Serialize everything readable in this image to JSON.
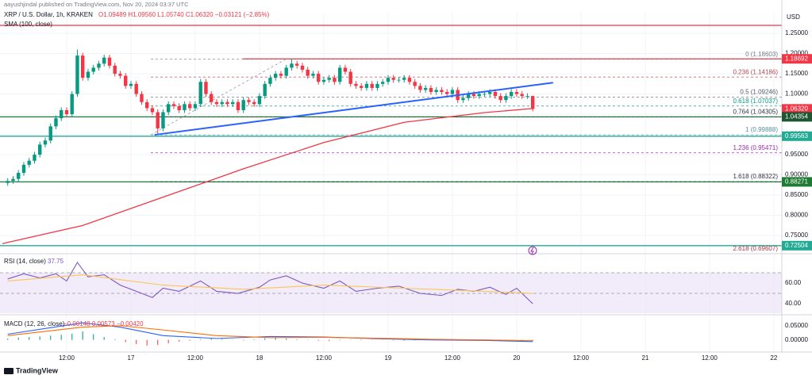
{
  "header": {
    "publisher": "aayushjindal published on TradingView.com, Nov 20, 2024 03:37 UTC",
    "symbol": "XRP / U.S. Dollar, 1h, KRAKEN",
    "ohlc": "O1.09489 H1.09560 L1.05740 C1.06320 −0.03121 (−2.85%)",
    "currency": "USD"
  },
  "footer": {
    "brand": "TradingView"
  },
  "chart_data": [
    {
      "type": "candlestick",
      "indicator": "SMA (100, close)",
      "up_color": "#089981",
      "down_color": "#f23645",
      "grid": true,
      "x": [
        1,
        2,
        3,
        4,
        5,
        6,
        7,
        8,
        9,
        10,
        11,
        12,
        13,
        14,
        15,
        16,
        17,
        18,
        19,
        20,
        21,
        22,
        23,
        24,
        25,
        26,
        27,
        28,
        29,
        30,
        31,
        32,
        33,
        34,
        35,
        36,
        37,
        38,
        39,
        40,
        41,
        42,
        43,
        44,
        45,
        46,
        47,
        48,
        49,
        50,
        51,
        52,
        53,
        54,
        55,
        56,
        57,
        58,
        59,
        60,
        61,
        62,
        63,
        64,
        65,
        66,
        67,
        68,
        69,
        70,
        71,
        72,
        73,
        74,
        75,
        76,
        77,
        78,
        79,
        80,
        81,
        82,
        83,
        84,
        85,
        86,
        87,
        88,
        89,
        90,
        91,
        92,
        93,
        94,
        95,
        96,
        97,
        98,
        99
      ],
      "open": [
        0.88,
        0.885,
        0.89,
        0.905,
        0.925,
        0.935,
        0.95,
        0.975,
        0.985,
        1.02,
        1.04,
        1.06,
        1.05,
        1.1,
        1.195,
        1.14,
        1.155,
        1.165,
        1.175,
        1.19,
        1.17,
        1.15,
        1.145,
        1.12,
        1.125,
        1.1,
        1.08,
        1.065,
        1.055,
        1.015,
        1.055,
        1.075,
        1.07,
        1.06,
        1.075,
        1.065,
        1.075,
        1.13,
        1.1,
        1.08,
        1.075,
        1.08,
        1.075,
        1.08,
        1.06,
        1.085,
        1.08,
        1.075,
        1.095,
        1.125,
        1.14,
        1.15,
        1.145,
        1.165,
        1.175,
        1.17,
        1.16,
        1.145,
        1.15,
        1.13,
        1.135,
        1.14,
        1.13,
        1.165,
        1.155,
        1.125,
        1.12,
        1.115,
        1.125,
        1.115,
        1.125,
        1.13,
        1.14,
        1.135,
        1.135,
        1.14,
        1.13,
        1.12,
        1.11,
        1.115,
        1.105,
        1.11,
        1.105,
        1.1,
        1.11,
        1.085,
        1.09,
        1.1,
        1.095,
        1.1,
        1.1,
        1.105,
        1.095,
        1.085,
        1.095,
        1.105,
        1.1,
        1.095,
        1.095
      ],
      "high": [
        0.892,
        0.897,
        0.912,
        0.932,
        0.942,
        0.957,
        0.982,
        0.992,
        1.027,
        1.047,
        1.067,
        1.067,
        1.107,
        1.21,
        1.202,
        1.162,
        1.172,
        1.182,
        1.197,
        1.197,
        1.177,
        1.157,
        1.152,
        1.132,
        1.132,
        1.107,
        1.087,
        1.072,
        1.062,
        1.062,
        1.082,
        1.082,
        1.077,
        1.082,
        1.082,
        1.082,
        1.137,
        1.137,
        1.107,
        1.087,
        1.087,
        1.087,
        1.087,
        1.087,
        1.092,
        1.092,
        1.087,
        1.102,
        1.132,
        1.147,
        1.157,
        1.157,
        1.172,
        1.187,
        1.182,
        1.177,
        1.167,
        1.157,
        1.157,
        1.142,
        1.147,
        1.147,
        1.172,
        1.172,
        1.162,
        1.132,
        1.127,
        1.132,
        1.132,
        1.132,
        1.137,
        1.147,
        1.147,
        1.142,
        1.147,
        1.147,
        1.137,
        1.127,
        1.122,
        1.122,
        1.117,
        1.117,
        1.112,
        1.117,
        1.117,
        1.097,
        1.107,
        1.107,
        1.107,
        1.107,
        1.112,
        1.112,
        1.102,
        1.102,
        1.112,
        1.112,
        1.107,
        1.102,
        1.096
      ],
      "low": [
        0.873,
        0.878,
        0.883,
        0.898,
        0.918,
        0.928,
        0.943,
        0.968,
        0.978,
        1.013,
        1.033,
        1.043,
        1.043,
        1.093,
        1.133,
        1.133,
        1.148,
        1.158,
        1.168,
        1.163,
        1.143,
        1.138,
        1.113,
        1.113,
        1.093,
        1.073,
        1.058,
        1.048,
        0.999,
        1.008,
        1.048,
        1.063,
        1.053,
        1.053,
        1.058,
        1.058,
        1.068,
        1.093,
        1.073,
        1.068,
        1.068,
        1.068,
        1.068,
        1.053,
        1.053,
        1.073,
        1.068,
        1.068,
        1.088,
        1.118,
        1.133,
        1.138,
        1.138,
        1.158,
        1.163,
        1.153,
        1.138,
        1.138,
        1.123,
        1.123,
        1.128,
        1.123,
        1.123,
        1.148,
        1.118,
        1.113,
        1.108,
        1.108,
        1.108,
        1.108,
        1.118,
        1.123,
        1.128,
        1.128,
        1.128,
        1.123,
        1.113,
        1.103,
        1.103,
        1.098,
        1.098,
        1.098,
        1.093,
        1.093,
        1.078,
        1.078,
        1.083,
        1.088,
        1.088,
        1.093,
        1.093,
        1.088,
        1.078,
        1.078,
        1.088,
        1.093,
        1.088,
        1.088,
        1.057
      ],
      "close": [
        0.885,
        0.89,
        0.905,
        0.925,
        0.935,
        0.95,
        0.975,
        0.985,
        1.02,
        1.04,
        1.06,
        1.05,
        1.1,
        1.195,
        1.14,
        1.155,
        1.165,
        1.175,
        1.19,
        1.17,
        1.15,
        1.145,
        1.12,
        1.125,
        1.1,
        1.08,
        1.065,
        1.055,
        1.015,
        1.055,
        1.075,
        1.07,
        1.06,
        1.075,
        1.065,
        1.075,
        1.13,
        1.1,
        1.08,
        1.075,
        1.08,
        1.075,
        1.08,
        1.06,
        1.085,
        1.08,
        1.075,
        1.095,
        1.125,
        1.14,
        1.15,
        1.145,
        1.165,
        1.175,
        1.17,
        1.16,
        1.145,
        1.15,
        1.13,
        1.135,
        1.14,
        1.13,
        1.165,
        1.155,
        1.125,
        1.12,
        1.115,
        1.125,
        1.115,
        1.125,
        1.13,
        1.14,
        1.135,
        1.135,
        1.14,
        1.13,
        1.12,
        1.11,
        1.115,
        1.105,
        1.11,
        1.105,
        1.1,
        1.11,
        1.085,
        1.09,
        1.1,
        1.095,
        1.1,
        1.1,
        1.105,
        1.095,
        1.085,
        1.095,
        1.105,
        1.1,
        1.095,
        1.095,
        1.063
      ],
      "sma": {
        "color": "#f23645",
        "x": [
          0,
          15,
          30,
          45,
          60,
          75,
          90,
          99
        ],
        "values": [
          0.73,
          0.775,
          0.845,
          0.915,
          0.98,
          1.03,
          1.054,
          1.064
        ]
      },
      "trendline": {
        "color": "#2962ff",
        "x": [
          28.4,
          102.8
        ],
        "values": [
          0.999,
          1.128
        ]
      },
      "hlines": [
        {
          "value": 1.2696,
          "color": "#f23645"
        },
        {
          "value": 1.18692,
          "color": "#f23645",
          "x_start": 44.9
        },
        {
          "value": 1.04354,
          "color": "#1e7b34"
        },
        {
          "value": 0.99563,
          "color": "#22ab94"
        },
        {
          "value": 0.88271,
          "color": "#1e7b34"
        },
        {
          "value": 0.72504,
          "color": "#22ab94"
        }
      ],
      "fib": {
        "x_start": 27.7,
        "diagonal": {
          "x": [
            27.7,
            52.9
          ],
          "values": [
            0.99888,
            1.18603
          ]
        },
        "levels": [
          {
            "value": 1.18603,
            "label": "0 (1.18603)",
            "color": "#787b86"
          },
          {
            "value": 1.14186,
            "label": "0.236 (1.14186)",
            "color": "#b2494f"
          },
          {
            "value": 1.09246,
            "label": "0.5 (1.09246)",
            "color": "#555a66"
          },
          {
            "value": 1.07037,
            "label": "0.618 (1.07037)",
            "color": "#089981"
          },
          {
            "value": 1.04305,
            "label": "0.764 (1.04305)",
            "color": "#333640"
          },
          {
            "value": 0.99888,
            "label": "1 (0.99888)",
            "color": "#5b8fa0"
          },
          {
            "value": 0.95471,
            "label": "1.236 (0.95471)",
            "color": "#9c27b0"
          },
          {
            "value": 0.88322,
            "label": "1.618 (0.88322)",
            "color": "#333640"
          },
          {
            "value": 0.69607,
            "label": "2.618 (0.69607)",
            "color": "#a33a44"
          }
        ]
      },
      "price_labels": [
        {
          "value": 1.18692,
          "label": "1.18692",
          "color": "#f23645"
        },
        {
          "value": 1.0632,
          "label": "1.06320",
          "color": "#f23645"
        },
        {
          "value": 1.04354,
          "label": "1.04354",
          "color": "#1e5631"
        },
        {
          "value": 0.99563,
          "label": "0.99563",
          "color": "#22ab94"
        },
        {
          "value": 0.88271,
          "label": "0.88271",
          "color": "#1e7b34"
        },
        {
          "value": 0.72504,
          "label": "0.72504",
          "color": "#22ab94"
        }
      ],
      "ylim": [
        0.709,
        1.303
      ],
      "yticks": [
        {
          "value": 1.25,
          "label": "1.25000"
        },
        {
          "value": 1.2,
          "label": "1.20000"
        },
        {
          "value": 1.15,
          "label": "1.15000"
        },
        {
          "value": 1.1,
          "label": "1.10000"
        },
        {
          "value": 1.05,
          "label": "1.05000"
        },
        {
          "value": 1.0,
          "label": "1.00000"
        },
        {
          "value": 0.95,
          "label": "0.95000"
        },
        {
          "value": 0.9,
          "label": "0.90000"
        },
        {
          "value": 0.85,
          "label": "0.85000"
        },
        {
          "value": 0.8,
          "label": "0.80000"
        },
        {
          "value": 0.75,
          "label": "0.75000"
        }
      ],
      "xlim": [
        -0.44,
        145.5
      ],
      "xticks": [
        {
          "value": 12,
          "label": "12:00"
        },
        {
          "value": 24,
          "label": "17"
        },
        {
          "value": 36,
          "label": "12:00"
        },
        {
          "value": 48,
          "label": "18"
        },
        {
          "value": 60,
          "label": "12:00"
        },
        {
          "value": 72,
          "label": "19"
        },
        {
          "value": 84,
          "label": "12:00"
        },
        {
          "value": 96,
          "label": "20"
        },
        {
          "value": 108,
          "label": "12:00"
        },
        {
          "value": 120,
          "label": "21"
        },
        {
          "value": 132,
          "label": "12:00"
        },
        {
          "value": 144,
          "label": "22"
        }
      ]
    },
    {
      "type": "line",
      "title": "RSI (14, close)",
      "readout": "37.75",
      "band": [
        30,
        70
      ],
      "band_color": "#ede3f7",
      "levels": [
        70,
        50,
        30
      ],
      "series": [
        {
          "color": "#7e57c2",
          "x": [
            1,
            4,
            7,
            10,
            12,
            14,
            16,
            19,
            22,
            25,
            28,
            30,
            33,
            37,
            40,
            44,
            48,
            50,
            53,
            56,
            60,
            63,
            66,
            70,
            74,
            78,
            82,
            85,
            88,
            91,
            94,
            96,
            99
          ],
          "values": [
            64,
            69,
            65,
            69,
            62,
            80,
            66,
            68,
            58,
            52,
            46,
            55,
            52,
            62,
            52,
            50,
            56,
            63,
            67,
            60,
            55,
            62,
            52,
            55,
            57,
            50,
            48,
            54,
            52,
            56,
            49,
            55,
            40
          ]
        },
        {
          "color": "#f9c74f",
          "x": [
            1,
            15,
            30,
            45,
            60,
            75,
            90,
            99
          ],
          "values": [
            62,
            68,
            58,
            54,
            58,
            55,
            52,
            50
          ]
        }
      ],
      "ylim": [
        30.8,
        86.9
      ],
      "yticks": [
        {
          "value": 60,
          "label": "60.00"
        },
        {
          "value": 40,
          "label": "40.00"
        }
      ]
    },
    {
      "type": "macd",
      "title": "MACD (12, 26, close)",
      "readout": "−0.00148  0.00573  −0.00420",
      "histogram": {
        "up_color": "#26a69a",
        "down_color": "#ff5252",
        "x": [
          1,
          3,
          5,
          7,
          9,
          11,
          13,
          15,
          17,
          19,
          21,
          23,
          25,
          27,
          29,
          31,
          33,
          35,
          37,
          39,
          41,
          43,
          45,
          47,
          49,
          51,
          53,
          55,
          57,
          59,
          61,
          63,
          65,
          67,
          69,
          71,
          73,
          75,
          77,
          79,
          81,
          83,
          85,
          87,
          89,
          91,
          93,
          95,
          97,
          99
        ],
        "values": [
          0.005,
          0.008,
          0.01,
          0.012,
          0.015,
          0.018,
          0.022,
          0.03,
          0.02,
          0.01,
          0.002,
          -0.008,
          -0.015,
          -0.02,
          -0.018,
          -0.012,
          -0.006,
          -0.003,
          0.002,
          0.004,
          0.003,
          0.001,
          -0.002,
          0.002,
          0.006,
          0.008,
          0.005,
          0.002,
          -0.001,
          -0.003,
          -0.004,
          -0.002,
          0.001,
          0.002,
          0.001,
          -0.001,
          -0.002,
          -0.003,
          -0.002,
          -0.001,
          0.0,
          -0.001,
          -0.002,
          -0.001,
          0.0,
          -0.001,
          0.001,
          -0.001,
          -0.002,
          -0.004
        ]
      },
      "series": [
        {
          "color": "#2962ff",
          "x": [
            1,
            8,
            15,
            22,
            30,
            40,
            50,
            60,
            70,
            80,
            90,
            99
          ],
          "values": [
            0.02,
            0.04,
            0.06,
            0.045,
            0.015,
            0.005,
            0.012,
            0.01,
            0.004,
            0.0,
            -0.002,
            -0.006
          ]
        },
        {
          "color": "#ff6d00",
          "x": [
            1,
            8,
            15,
            22,
            30,
            40,
            50,
            60,
            70,
            80,
            90,
            99
          ],
          "values": [
            0.015,
            0.03,
            0.045,
            0.05,
            0.035,
            0.015,
            0.008,
            0.009,
            0.006,
            0.002,
            0.0,
            -0.003
          ]
        }
      ],
      "ylim": [
        -0.04,
        0.08
      ],
      "yticks": [
        {
          "value": 0.05,
          "label": "0.05000"
        },
        {
          "value": 0,
          "label": "0.00000"
        }
      ]
    }
  ]
}
